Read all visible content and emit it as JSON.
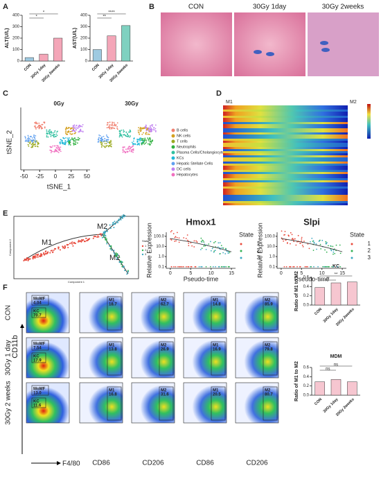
{
  "panel_labels": [
    "A",
    "B",
    "C",
    "D",
    "E",
    "F"
  ],
  "alt": {
    "type": "bar",
    "ylabel": "ALT(U/L)",
    "categories": [
      "CON",
      "30Gy 1day",
      "30Gy 2weeks"
    ],
    "values": [
      30,
      60,
      200
    ],
    "colors": [
      "#9ecae1",
      "#f4a6b8",
      "#f4a6b8"
    ],
    "ylim": [
      0,
      400
    ],
    "yticks": [
      0,
      100,
      200,
      300,
      400
    ],
    "annotations": [
      "*",
      "*"
    ]
  },
  "ast": {
    "type": "bar",
    "ylabel": "AST(U/L)",
    "categories": [
      "CON",
      "30Gy 1day",
      "30Gy 2weeks"
    ],
    "values": [
      100,
      220,
      310
    ],
    "colors": [
      "#9ecae1",
      "#f4a6b8",
      "#7fd1c0"
    ],
    "ylim": [
      0,
      400
    ],
    "yticks": [
      0,
      100,
      200,
      300,
      400
    ],
    "annotations": [
      "****",
      "**"
    ]
  },
  "histology": {
    "titles": [
      "CON",
      "30Gy 1day",
      "30Gy 2weeks"
    ]
  },
  "tsne": {
    "titles": [
      "0Gy",
      "30Gy"
    ],
    "xlabel": "tSNE_1",
    "ylabel": "tSNE_2",
    "xlim": [
      -55,
      55
    ],
    "xticks": [
      -50,
      -25,
      0,
      25,
      50
    ],
    "legend": [
      {
        "name": "B cells",
        "color": "#f08070"
      },
      {
        "name": "NK cells",
        "color": "#d4a020"
      },
      {
        "name": "T cells",
        "color": "#9aaa20"
      },
      {
        "name": "Neutrophils",
        "color": "#30b040"
      },
      {
        "name": "Plasma Cells/Cholangiocytes",
        "color": "#30c0a0"
      },
      {
        "name": "KCs",
        "color": "#20b8d8"
      },
      {
        "name": "Hepatic Stellate Cells",
        "color": "#60a0f0"
      },
      {
        "name": "DC cells",
        "color": "#c080f0"
      },
      {
        "name": "Hepatocytes",
        "color": "#f070c0"
      }
    ]
  },
  "heatmap": {
    "labels": [
      "M1",
      "M2"
    ]
  },
  "trajectory": {
    "labels": [
      "M1",
      "M2",
      "M2"
    ],
    "xlabel": "Component 1",
    "ylabel": "Component 2",
    "legend_title": "State",
    "states": [
      "1",
      "2",
      "3"
    ]
  },
  "expression": [
    {
      "title": "Hmox1",
      "ylabel": "Relative Expression",
      "xlabel": "Pseudo-time",
      "ylim": [
        0.07,
        250
      ],
      "yticks": [
        {
          "value": 0.1,
          "label": "0.1"
        },
        {
          "value": 1,
          "label": "1.0"
        },
        {
          "value": 10,
          "label": "10.0"
        },
        {
          "value": 100,
          "label": "100.0"
        }
      ],
      "xlim": [
        -1,
        16
      ],
      "xticks": [
        0,
        5,
        10,
        15
      ],
      "legend_title": "State",
      "states": [
        "1",
        "2",
        "3"
      ]
    },
    {
      "title": "Slpi",
      "ylabel": "Relative Expression",
      "xlabel": "Pseudo-time",
      "ylim": [
        0.07,
        250
      ],
      "yticks": [
        {
          "value": 0.1,
          "label": "0.1"
        },
        {
          "value": 1,
          "label": "1.0"
        },
        {
          "value": 10,
          "label": "10.0"
        },
        {
          "value": 100,
          "label": "100.0"
        }
      ],
      "xlim": [
        -1,
        16
      ],
      "xticks": [
        0,
        5,
        10,
        15
      ],
      "legend_title": "State",
      "states": [
        "1",
        "2",
        "3"
      ]
    }
  ],
  "state_colors": [
    "#e8483a",
    "#30b050",
    "#3aa8c0"
  ],
  "flow": {
    "ylabel": "CD11b",
    "xlabel": "F4/80",
    "columns": [
      "CD86",
      "CD206",
      "CD86",
      "CD206"
    ],
    "rows": [
      {
        "label": "CON",
        "gates": [
          {
            "name": "MoMF",
            "value": "4.04"
          },
          {
            "name": "KC",
            "value": "70.7"
          },
          {
            "name": "M1",
            "value": "18.7"
          },
          {
            "name": "M2",
            "value": "62.7"
          },
          {
            "name": "M1",
            "value": "14.8"
          },
          {
            "name": "M2",
            "value": "85.9"
          }
        ]
      },
      {
        "label": "30Gy 1 day",
        "gates": [
          {
            "name": "MoMF",
            "value": "7.54"
          },
          {
            "name": "KC",
            "value": "17.9"
          },
          {
            "name": "M1",
            "value": "13.8"
          },
          {
            "name": "M2",
            "value": "26.9"
          },
          {
            "name": "M1",
            "value": "16.9"
          },
          {
            "name": "M2",
            "value": "79.8"
          }
        ]
      },
      {
        "label": "30Gy 2 weeks",
        "gates": [
          {
            "name": "MoMF",
            "value": "13.0"
          },
          {
            "name": "KC",
            "value": "11.6"
          },
          {
            "name": "M1",
            "value": "16.8"
          },
          {
            "name": "M2",
            "value": "31.6"
          },
          {
            "name": "M1",
            "value": "20.5"
          },
          {
            "name": "M2",
            "value": "80.7"
          }
        ]
      }
    ]
  },
  "kc": {
    "type": "bar",
    "title": "KC",
    "ylabel": "Ratio of M1 to M2",
    "categories": [
      "CON",
      "30Gy 1day",
      "30Gy 2weeks"
    ],
    "values": [
      0.38,
      0.48,
      0.5
    ],
    "colors": [
      "#f6c6d0",
      "#f6c6d0",
      "#f6c6d0"
    ],
    "ylim": [
      0,
      0.6
    ],
    "yticks": [
      {
        "value": 0,
        "label": "0.0"
      },
      0.2,
      0.4,
      0.6
    ],
    "annotations": [
      "**",
      "**"
    ]
  },
  "mdm": {
    "type": "bar",
    "title": "MDM",
    "ylabel": "Ratio of M1 to M2",
    "categories": [
      "CON",
      "30Gy 1day",
      "30Gy 2weeks"
    ],
    "values": [
      0.29,
      0.34,
      0.29
    ],
    "colors": [
      "#f6c6d0",
      "#f6c6d0",
      "#f6c6d0"
    ],
    "ylim": [
      0,
      0.6
    ],
    "yticks": [
      {
        "value": 0,
        "label": "0.0"
      },
      0.2,
      0.4,
      0.6
    ],
    "annotations": [
      "ns",
      "ns"
    ]
  }
}
